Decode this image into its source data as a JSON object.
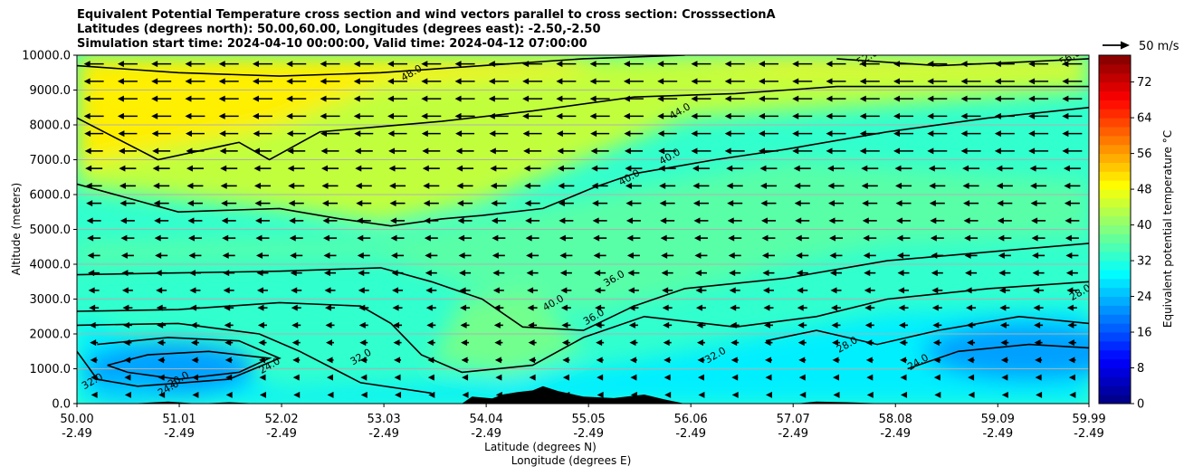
{
  "title_lines": [
    "Equivalent Potential Temperature cross section and wind vectors parallel to cross section: CrosssectionA",
    "Latitudes (degrees north): 50.00,60.00, Longitudes (degrees east): -2.50,-2.50",
    "Simulation start time: 2024-04-10 00:00:00, Valid time: 2024-04-12 07:00:00"
  ],
  "chart_data": {
    "type": "heatmap",
    "subtype": "filled contour cross section with contour lines and wind vectors",
    "x_labels": {
      "latitude": [
        "50.00",
        "51.01",
        "52.02",
        "53.03",
        "54.04",
        "55.05",
        "56.06",
        "57.07",
        "58.08",
        "59.09",
        "59.99"
      ],
      "longitude": [
        "-2.49",
        "-2.49",
        "-2.49",
        "-2.49",
        "-2.49",
        "-2.49",
        "-2.49",
        "-2.49",
        "-2.49",
        "-2.49",
        "-2.49"
      ]
    },
    "x_values": [
      50.0,
      51.01,
      52.02,
      53.03,
      54.04,
      55.05,
      56.06,
      57.07,
      58.08,
      59.09,
      59.99
    ],
    "xlim": [
      50.0,
      59.99
    ],
    "xlabel_lines": [
      "Latitude (degrees N)",
      "Longitude (degrees E)"
    ],
    "ylabel": "Altitude (meters)",
    "ylim": [
      0,
      10000
    ],
    "y_ticks": [
      "0.0",
      "1000.0",
      "2000.0",
      "3000.0",
      "4000.0",
      "5000.0",
      "6000.0",
      "7000.0",
      "8000.0",
      "9000.0",
      "10000.0"
    ],
    "y_tick_values": [
      0,
      1000,
      2000,
      3000,
      4000,
      5000,
      6000,
      7000,
      8000,
      9000,
      10000
    ],
    "grid": "horizontal",
    "colorbar": {
      "label": "Equivalent potential temperature $^\\circ$C",
      "label_display": "Equivalent potential temperature °C",
      "ticks": [
        "0",
        "8",
        "16",
        "24",
        "32",
        "40",
        "48",
        "56",
        "64",
        "72"
      ],
      "range": [
        0,
        78
      ],
      "colormap": "jet",
      "colors": [
        "#00008f",
        "#0000ff",
        "#0080ff",
        "#00ffff",
        "#80ff80",
        "#ffff00",
        "#ff8000",
        "#ff0000",
        "#800000"
      ]
    },
    "quiver_key": {
      "label": "50 m/s",
      "speed": 50
    },
    "contour_labels": [
      "24.0",
      "28.0",
      "32.0",
      "36.0",
      "40.0",
      "44.0",
      "48.0",
      "52.0",
      "56.0"
    ],
    "theta_e_field": {
      "description_levels_degC": {
        "surface_layer_cold_pools": 22,
        "boundary_layer": 28,
        "mid_levels": 36,
        "upper_levels": 44,
        "top_south": 50
      }
    },
    "wind": "predominantly southward (negative along-section) winds, strongest aloft"
  }
}
